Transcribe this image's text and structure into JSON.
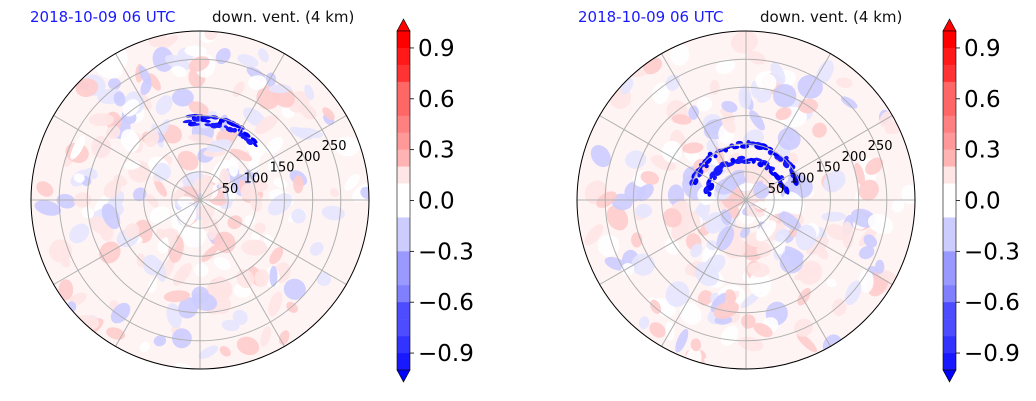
{
  "chart_data": [
    {
      "type": "heatmap",
      "projection": "polar",
      "title_left": "2018-10-09 06 UTC",
      "title_right": "down. vent. (4 km)",
      "radial_ticks": [
        "50",
        "100",
        "150",
        "200",
        "250"
      ],
      "radial_values": [
        50,
        100,
        150,
        200,
        250
      ],
      "angular_gridlines_deg": [
        0,
        30,
        60,
        90,
        120,
        150,
        180,
        210,
        240,
        270,
        300,
        330
      ],
      "colorbar": {
        "ticks": [
          "0.9",
          "0.6",
          "0.3",
          "0.0",
          "−0.3",
          "−0.6",
          "−0.9"
        ],
        "tick_values": [
          0.9,
          0.6,
          0.3,
          0.0,
          -0.3,
          -0.6,
          -0.9
        ],
        "range": [
          -1.0,
          1.0
        ],
        "extend": "both",
        "colormap": "bwr"
      },
      "grid": true
    },
    {
      "type": "heatmap",
      "projection": "polar",
      "title_left": "2018-10-09 06 UTC",
      "title_right": "down. vent. (4 km)",
      "radial_ticks": [
        "50",
        "100",
        "150",
        "200",
        "250"
      ],
      "radial_values": [
        50,
        100,
        150,
        200,
        250
      ],
      "angular_gridlines_deg": [
        0,
        30,
        60,
        90,
        120,
        150,
        180,
        210,
        240,
        270,
        300,
        330
      ],
      "colorbar": {
        "ticks": [
          "0.9",
          "0.6",
          "0.3",
          "0.0",
          "−0.3",
          "−0.6",
          "−0.9"
        ],
        "tick_values": [
          0.9,
          0.6,
          0.3,
          0.0,
          -0.3,
          -0.6,
          -0.9
        ],
        "range": [
          -1.0,
          1.0
        ],
        "extend": "both",
        "colormap": "bwr"
      },
      "grid": true
    }
  ],
  "colors": {
    "title_date": "#1a1aff",
    "title_var": "#111111",
    "positive": "#ff0000",
    "negative": "#0000ff",
    "grid": "#b0b0b0"
  }
}
